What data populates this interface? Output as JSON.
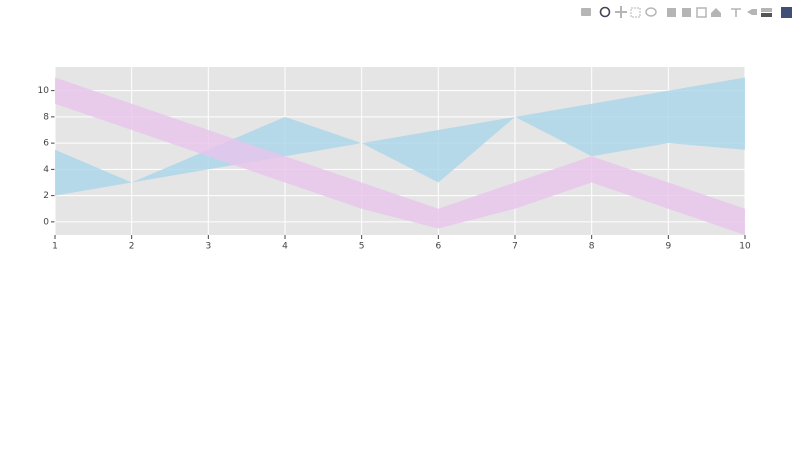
{
  "chart_data": {
    "type": "band",
    "x": [
      1,
      2,
      3,
      4,
      5,
      6,
      7,
      8,
      9,
      10
    ],
    "series": [
      {
        "color": "#a9d6ea",
        "values": [
          2,
          3,
          4,
          5,
          6,
          7,
          8,
          9,
          10,
          11
        ]
      },
      {
        "color": "#a9d6ea",
        "values": [
          5.5,
          3,
          5.5,
          8,
          6,
          3,
          8,
          5,
          6,
          5.5
        ]
      },
      {
        "color": "#e9c3ec",
        "values": [
          11,
          9,
          7,
          5,
          3,
          1,
          3,
          5,
          3,
          1
        ]
      },
      {
        "color": "#e9c3ec",
        "values": [
          9,
          7,
          5,
          3,
          1,
          -0.5,
          1,
          3,
          1,
          -1
        ]
      }
    ],
    "xlim": [
      1,
      10
    ],
    "xticks": [
      1,
      2,
      3,
      4,
      5,
      6,
      7,
      8,
      9,
      10
    ],
    "ylim": [
      -1,
      11.8
    ],
    "yticks": [
      0,
      2,
      4,
      6,
      8,
      10
    ],
    "grid": true,
    "plot_background": "#e5e5e5"
  }
}
